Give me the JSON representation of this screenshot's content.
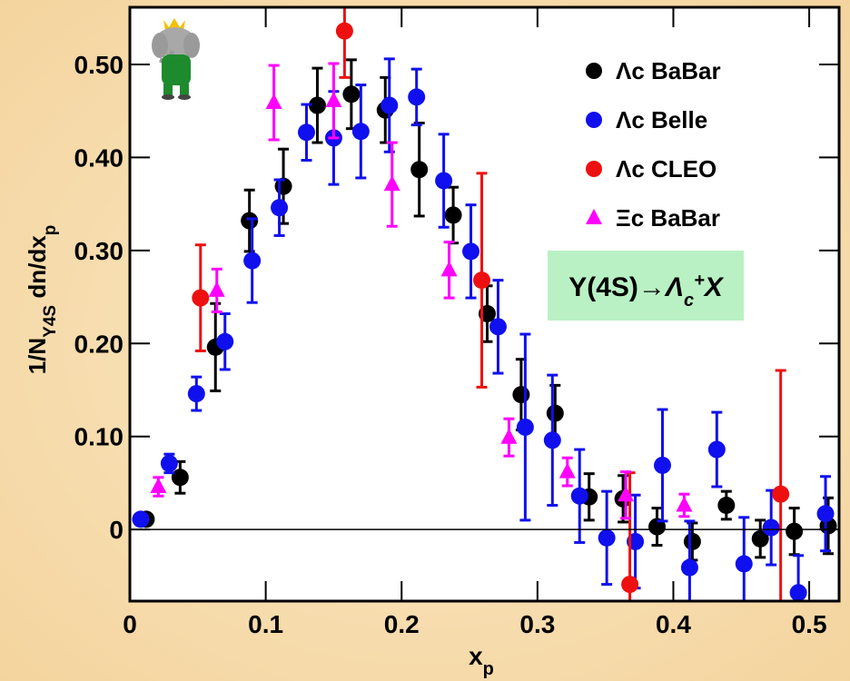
{
  "chart_data": {
    "type": "scatter",
    "xlabel": [
      "x",
      "p"
    ],
    "ylabel": [
      "1/N",
      "Υ4S",
      " dn/dx",
      "p"
    ],
    "annotation": [
      "Y(4S)→",
      "Λ",
      "c",
      "+",
      "X"
    ],
    "xlim": [
      0,
      0.522
    ],
    "ylim": [
      -0.077,
      0.5615
    ],
    "xticks": [
      0,
      0.1,
      0.2,
      0.3,
      0.4,
      0.5
    ],
    "yticks": [
      0,
      {
        "value": 0.1,
        "label": "0.10"
      },
      {
        "value": 0.2,
        "label": "0.20"
      },
      {
        "value": 0.3,
        "label": "0.30"
      },
      {
        "value": 0.4,
        "label": "0.40"
      },
      {
        "value": 0.5,
        "label": "0.50"
      }
    ],
    "series": [
      {
        "name": "Λc  BaBar",
        "color": "#000000",
        "marker": "circle",
        "x": [
          0.012,
          0.037,
          0.063,
          0.088,
          0.113,
          0.138,
          0.163,
          0.188,
          0.213,
          0.238,
          0.263,
          0.288,
          0.313,
          0.338,
          0.363,
          0.388,
          0.414,
          0.439,
          0.464,
          0.489,
          0.514
        ],
        "values": [
          0.011,
          0.056,
          0.196,
          0.332,
          0.369,
          0.456,
          0.468,
          0.451,
          0.387,
          0.338,
          0.232,
          0.145,
          0.125,
          0.035,
          0.033,
          0.003,
          -0.013,
          0.026,
          -0.01,
          -0.002,
          0.004
        ],
        "errors": [
          0.005,
          0.017,
          0.047,
          0.033,
          0.04,
          0.04,
          0.037,
          0.035,
          0.05,
          0.03,
          0.03,
          0.038,
          0.03,
          0.025,
          0.025,
          0.02,
          0.02,
          0.015,
          0.02,
          0.025,
          0.03
        ]
      },
      {
        "name": "Λc  Belle",
        "color": "#1010ee",
        "marker": "circle",
        "x": [
          0.008,
          0.029,
          0.049,
          0.07,
          0.09,
          0.11,
          0.13,
          0.15,
          0.17,
          0.191,
          0.211,
          0.231,
          0.251,
          0.271,
          0.291,
          0.311,
          0.331,
          0.351,
          0.372,
          0.392,
          0.412,
          0.432,
          0.452,
          0.472,
          0.492,
          0.512
        ],
        "values": [
          0.011,
          0.071,
          0.146,
          0.202,
          0.289,
          0.346,
          0.427,
          0.421,
          0.428,
          0.456,
          0.465,
          0.375,
          0.299,
          0.218,
          0.11,
          0.096,
          0.036,
          -0.009,
          -0.013,
          0.069,
          -0.041,
          0.086,
          -0.037,
          0.002,
          -0.068,
          0.017
        ],
        "errors": [
          0.005,
          0.01,
          0.018,
          0.03,
          0.045,
          0.03,
          0.03,
          0.05,
          0.05,
          0.05,
          0.03,
          0.05,
          0.05,
          0.05,
          0.1,
          0.07,
          0.05,
          0.05,
          0.05,
          0.06,
          0.05,
          0.04,
          0.05,
          0.04,
          0.04,
          0.04
        ]
      },
      {
        "name": "Λc  CLEO",
        "color": "#ee1010",
        "marker": "circle",
        "x": [
          0.052,
          0.158,
          0.259,
          0.368,
          0.479
        ],
        "values": [
          0.249,
          0.536,
          0.268,
          -0.059,
          0.038
        ],
        "errors": [
          0.057,
          0.05,
          0.115,
          0.12,
          0.133
        ]
      },
      {
        "name": "Ξc  BaBar",
        "color": "#ff00ff",
        "marker": "triangle",
        "x": [
          0.021,
          0.064,
          0.106,
          0.15,
          0.193,
          0.235,
          0.279,
          0.322,
          0.365,
          0.408
        ],
        "values": [
          0.046,
          0.257,
          0.459,
          0.461,
          0.371,
          0.279,
          0.099,
          0.062,
          0.037,
          0.026
        ],
        "errors": [
          0.01,
          0.023,
          0.04,
          0.04,
          0.045,
          0.03,
          0.02,
          0.015,
          0.025,
          0.012
        ]
      }
    ]
  }
}
